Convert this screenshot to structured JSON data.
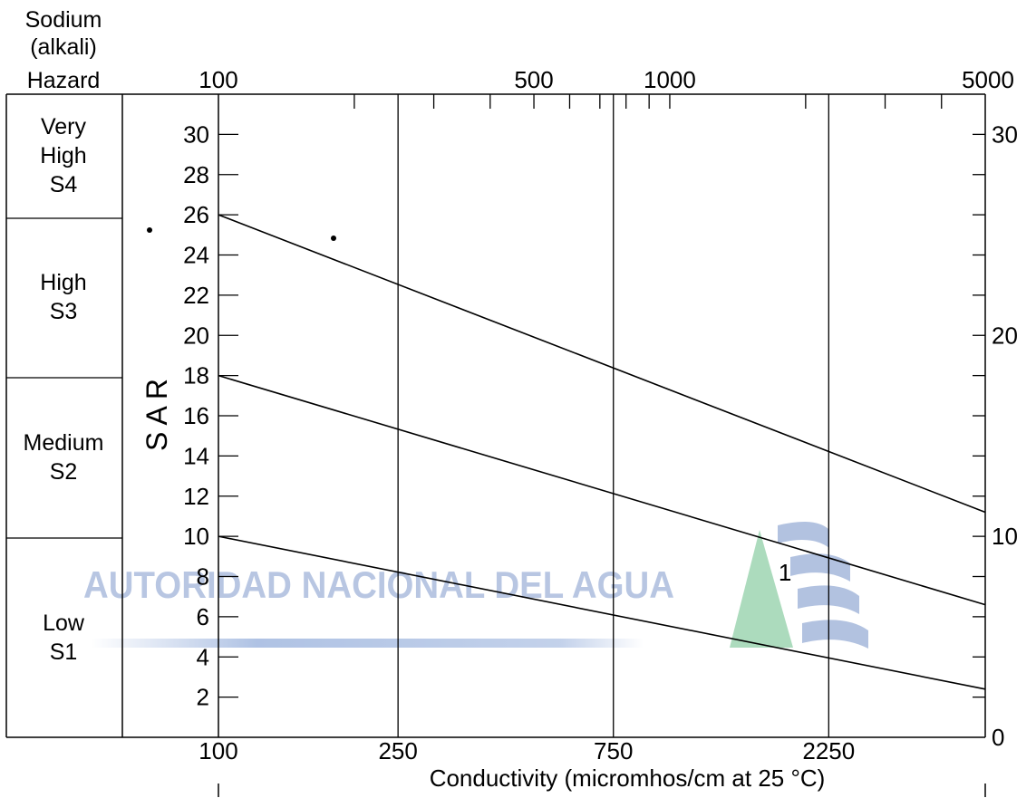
{
  "header": {
    "hazard_title": [
      "Sodium",
      "(alkali)",
      "Hazard"
    ]
  },
  "hazard_classes": [
    {
      "lines": [
        "Very",
        "High",
        "S4"
      ]
    },
    {
      "lines": [
        "High",
        "S3"
      ]
    },
    {
      "lines": [
        "Medium",
        "S2"
      ]
    },
    {
      "lines": [
        "Low",
        "S1"
      ]
    }
  ],
  "watermark": {
    "text": "AUTORIDAD NACIONAL DEL AGUA",
    "colors": {
      "blue": "#7f99cc",
      "green": "#7fc89a"
    }
  },
  "chart_data": {
    "type": "line",
    "xlabel": "Conductivity (micromhos/cm at 25 °C)",
    "ylabel": "S A R",
    "xscale": "log",
    "xlim": [
      100,
      5000
    ],
    "ylim": [
      0,
      32
    ],
    "top_tick_labels": [
      "100",
      "500",
      "1000",
      "5000"
    ],
    "bottom_tick_labels": [
      "100",
      "250",
      "750",
      "2250"
    ],
    "vertical_gridlines_at": [
      100,
      250,
      750,
      2250
    ],
    "left_tick_labels": [
      "30",
      "28",
      "26",
      "24",
      "22",
      "20",
      "18",
      "16",
      "14",
      "12",
      "10",
      "8",
      "6",
      "4",
      "2"
    ],
    "right_tick_labels": [
      "30",
      "20",
      "10",
      "0"
    ],
    "series": [
      {
        "x": [
          100,
          5000
        ],
        "y": [
          10,
          2.4
        ]
      },
      {
        "x": [
          100,
          5000
        ],
        "y": [
          18,
          6.6
        ]
      },
      {
        "x": [
          100,
          5000
        ],
        "y": [
          26,
          11.2
        ]
      }
    ],
    "points": [
      {
        "x": 1800,
        "y": 8.2,
        "label": "1"
      }
    ],
    "grid": "vertical lines only"
  }
}
